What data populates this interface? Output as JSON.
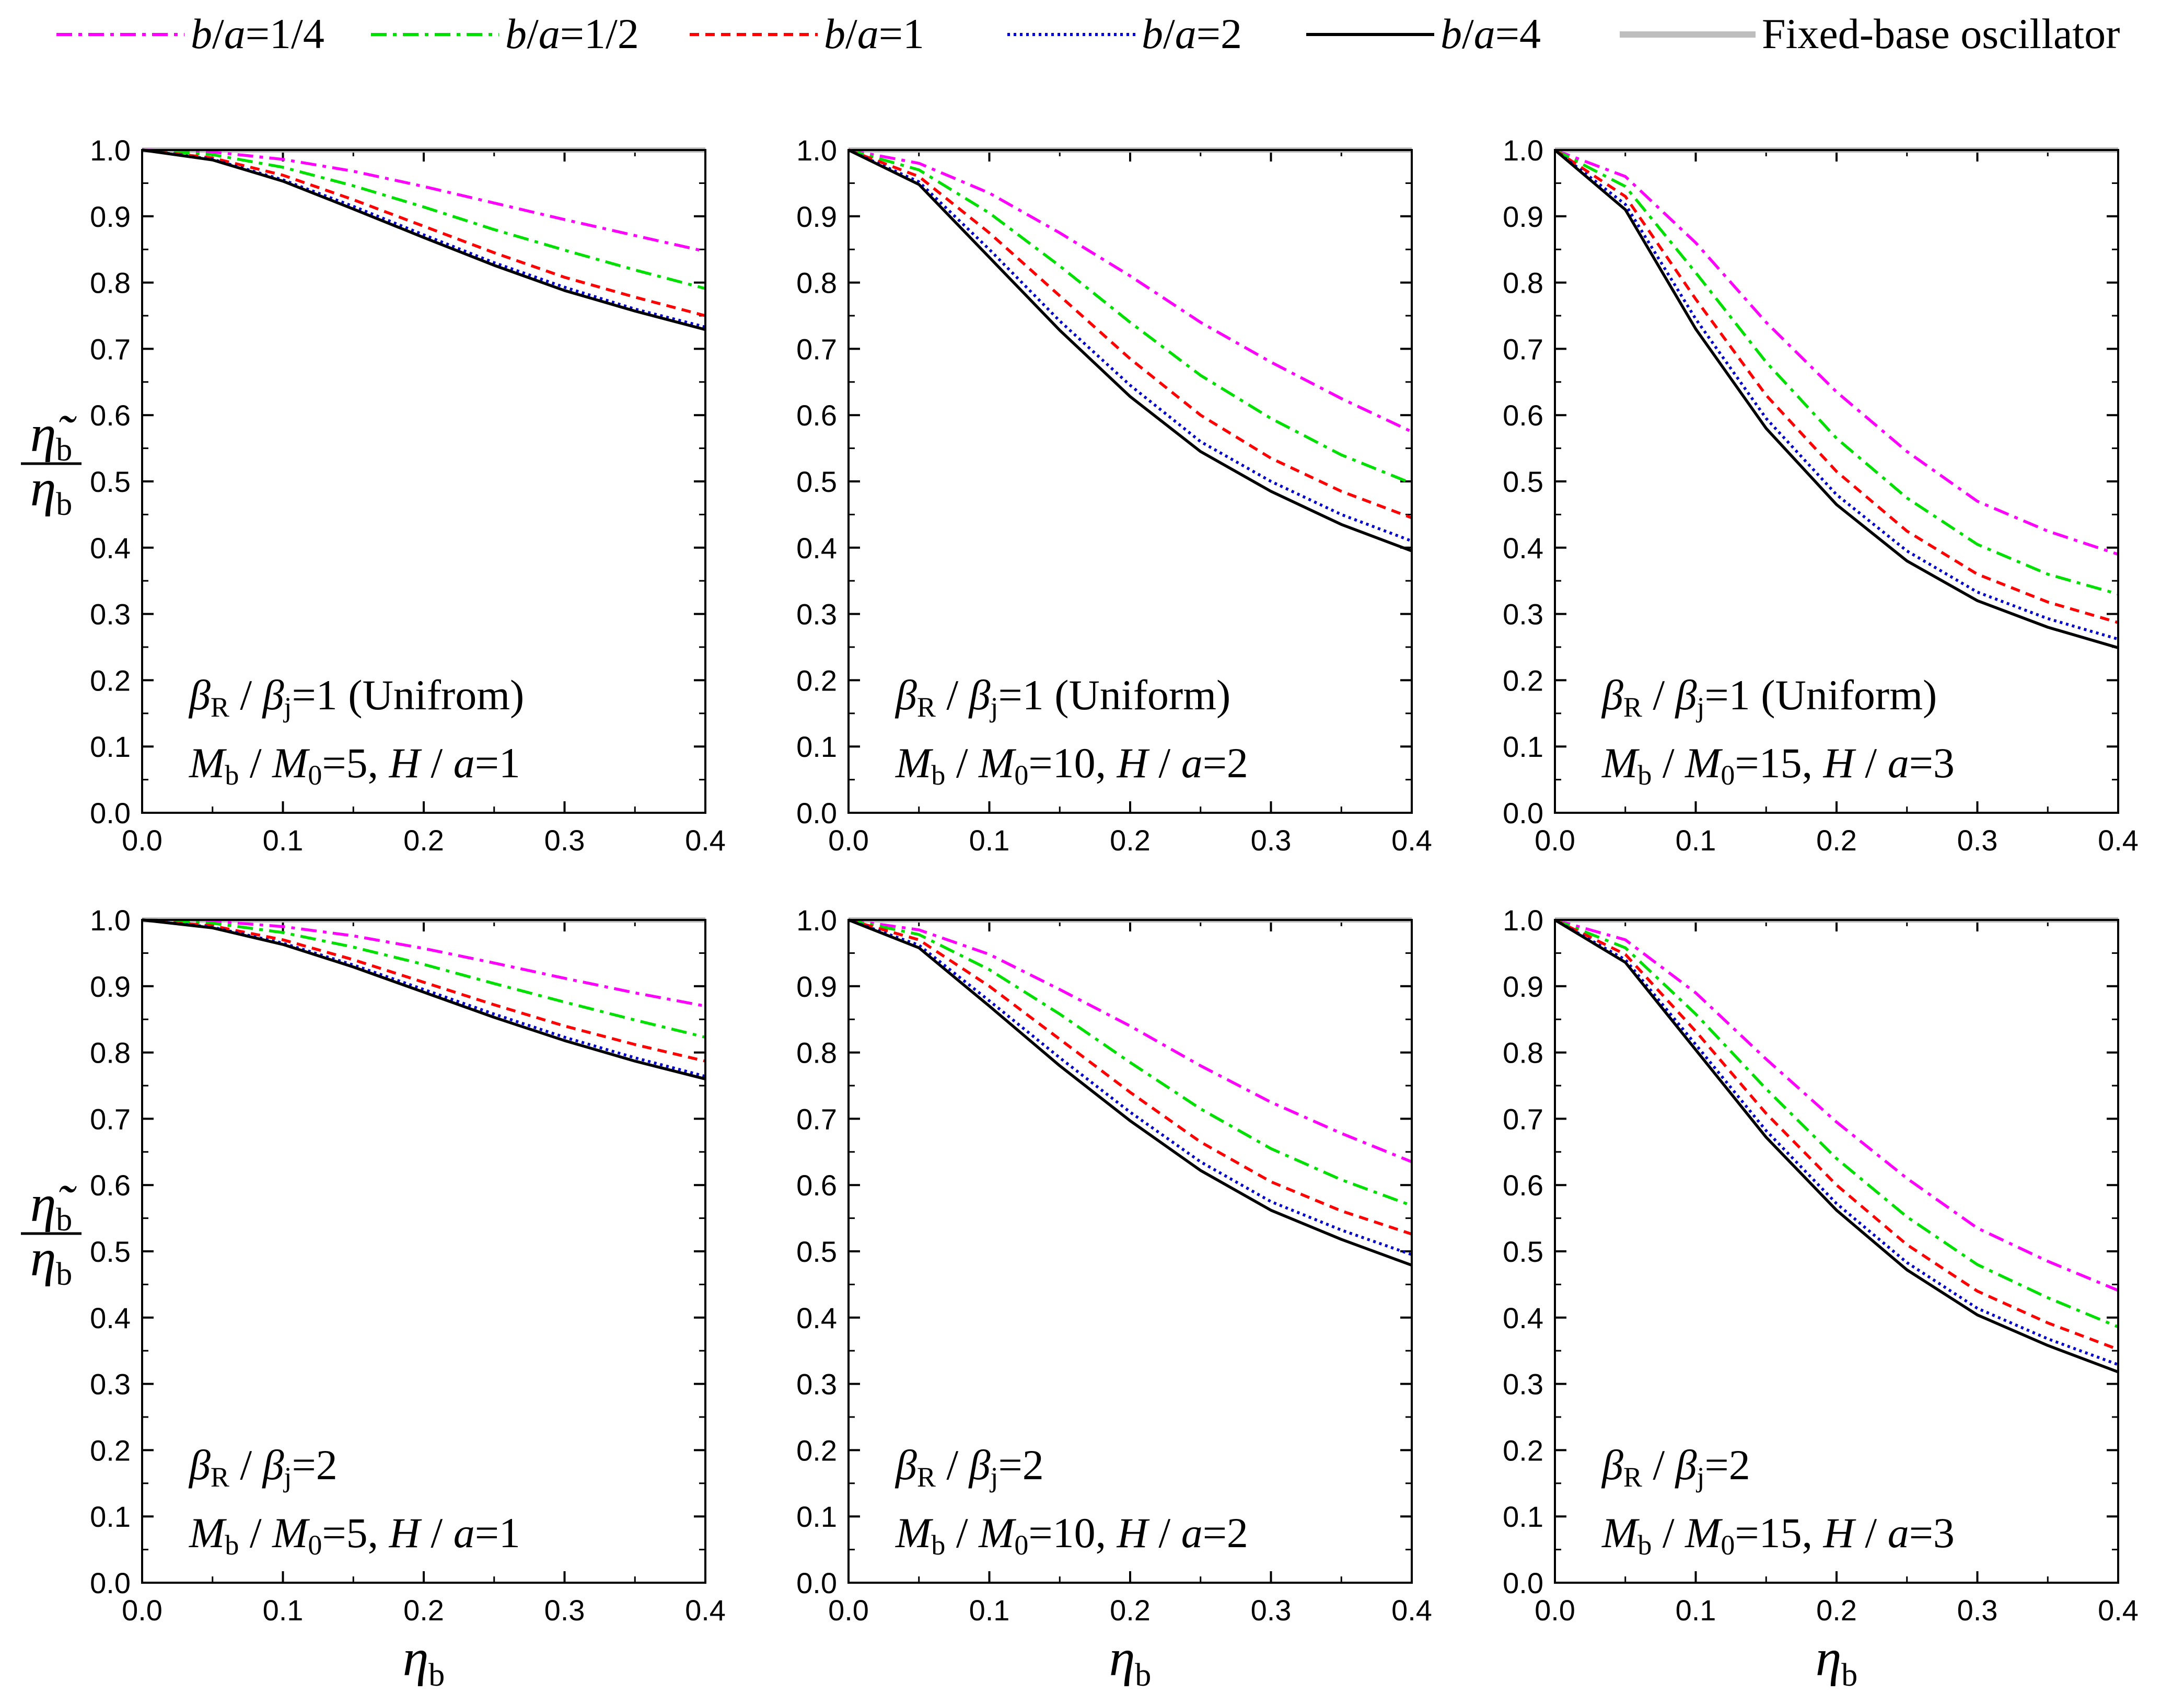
{
  "chart_data": {
    "type": "line",
    "x_axis": {
      "label_symbol": "η",
      "label_subscript": "b",
      "range": [
        0,
        0.4
      ],
      "ticks": [
        "0.0",
        "0.1",
        "0.2",
        "0.3",
        "0.4"
      ]
    },
    "y_axis": {
      "label_numerator_symbol": "η̃",
      "label_denominator_symbol": "η",
      "label_subscript": "b",
      "range": [
        0,
        1.0
      ],
      "ticks": [
        "0.0",
        "0.1",
        "0.2",
        "0.3",
        "0.4",
        "0.5",
        "0.6",
        "0.7",
        "0.8",
        "0.9",
        "1.0"
      ]
    },
    "legend": [
      {
        "key": "q025",
        "a": "b",
        "b": "a",
        "value": "1/4",
        "color": "#ff00ff",
        "dash": "dashdot"
      },
      {
        "key": "q05",
        "a": "b",
        "b": "a",
        "value": "1/2",
        "color": "#00e000",
        "dash": "dashdot"
      },
      {
        "key": "q1",
        "a": "b",
        "b": "a",
        "value": "1",
        "color": "#ff0000",
        "dash": "dash"
      },
      {
        "key": "q2",
        "a": "b",
        "b": "a",
        "value": "2",
        "color": "#0000cc",
        "dash": "dot"
      },
      {
        "key": "q4",
        "a": "b",
        "b": "a",
        "value": "4",
        "color": "#000000",
        "dash": "solid"
      },
      {
        "key": "fixed",
        "label": "Fixed-base oscillator",
        "color": "#bebebe",
        "dash": "solid"
      }
    ],
    "x": [
      0.0,
      0.05,
      0.1,
      0.15,
      0.2,
      0.25,
      0.3,
      0.35,
      0.4
    ],
    "panels": [
      {
        "ann1": {
          "beta_r": "β",
          "r_sub": "R",
          "beta_j": "β",
          "j_sub": "j",
          "value": "=1 (Unifrom)"
        },
        "ann2": {
          "m": "M",
          "m_sub": "b",
          "m0": "M",
          "m0_sub": "0",
          "m_value": "=5,",
          "h": "H",
          "a": "a",
          "h_value": "=1"
        },
        "series": {
          "q025": [
            1.0,
            0.997,
            0.986,
            0.968,
            0.945,
            0.92,
            0.895,
            0.871,
            0.847
          ],
          "q05": [
            1.0,
            0.993,
            0.974,
            0.946,
            0.914,
            0.88,
            0.849,
            0.819,
            0.791
          ],
          "q1": [
            1.0,
            0.988,
            0.962,
            0.925,
            0.885,
            0.845,
            0.808,
            0.778,
            0.75
          ],
          "q2": [
            1.0,
            0.986,
            0.955,
            0.915,
            0.872,
            0.83,
            0.793,
            0.76,
            0.733
          ],
          "q4": [
            1.0,
            0.985,
            0.953,
            0.911,
            0.868,
            0.826,
            0.788,
            0.757,
            0.729
          ],
          "fixed": [
            1.0,
            1.0,
            1.0,
            1.0,
            1.0,
            1.0,
            1.0,
            1.0,
            1.0
          ]
        }
      },
      {
        "ann1": {
          "beta_r": "β",
          "r_sub": "R",
          "beta_j": "β",
          "j_sub": "j",
          "value": "=1 (Uniform)"
        },
        "ann2": {
          "m": "M",
          "m_sub": "b",
          "m0": "M",
          "m0_sub": "0",
          "m_value": "=10,",
          "h": "H",
          "a": "a",
          "h_value": "=2"
        },
        "series": {
          "q025": [
            1.0,
            0.98,
            0.935,
            0.875,
            0.81,
            0.74,
            0.68,
            0.625,
            0.575
          ],
          "q05": [
            1.0,
            0.97,
            0.905,
            0.825,
            0.74,
            0.66,
            0.595,
            0.54,
            0.497
          ],
          "q1": [
            1.0,
            0.96,
            0.875,
            0.78,
            0.685,
            0.6,
            0.535,
            0.485,
            0.445
          ],
          "q2": [
            1.0,
            0.952,
            0.85,
            0.742,
            0.645,
            0.56,
            0.5,
            0.45,
            0.41
          ],
          "q4": [
            1.0,
            0.948,
            0.838,
            0.728,
            0.628,
            0.545,
            0.485,
            0.435,
            0.395
          ],
          "fixed": [
            1.0,
            1.0,
            1.0,
            1.0,
            1.0,
            1.0,
            1.0,
            1.0,
            1.0
          ]
        }
      },
      {
        "ann1": {
          "beta_r": "β",
          "r_sub": "R",
          "beta_j": "β",
          "j_sub": "j",
          "value": "=1 (Uniform)"
        },
        "ann2": {
          "m": "M",
          "m_sub": "b",
          "m0": "M",
          "m0_sub": "0",
          "m_value": "=15,",
          "h": "H",
          "a": "a",
          "h_value": "=3"
        },
        "series": {
          "q025": [
            1.0,
            0.96,
            0.86,
            0.74,
            0.635,
            0.545,
            0.47,
            0.425,
            0.39
          ],
          "q05": [
            1.0,
            0.945,
            0.815,
            0.68,
            0.565,
            0.475,
            0.405,
            0.36,
            0.33
          ],
          "q1": [
            1.0,
            0.93,
            0.775,
            0.63,
            0.515,
            0.425,
            0.36,
            0.318,
            0.287
          ],
          "q2": [
            1.0,
            0.918,
            0.745,
            0.595,
            0.48,
            0.395,
            0.333,
            0.293,
            0.262
          ],
          "q4": [
            1.0,
            0.91,
            0.73,
            0.58,
            0.465,
            0.38,
            0.32,
            0.28,
            0.249
          ],
          "fixed": [
            1.0,
            1.0,
            1.0,
            1.0,
            1.0,
            1.0,
            1.0,
            1.0,
            1.0
          ]
        }
      },
      {
        "ann1": {
          "beta_r": "β",
          "r_sub": "R",
          "beta_j": "β",
          "j_sub": "j",
          "value": "=2"
        },
        "ann2": {
          "m": "M",
          "m_sub": "b",
          "m0": "M",
          "m0_sub": "0",
          "m_value": "=5,",
          "h": "H",
          "a": "a",
          "h_value": "=1"
        },
        "series": {
          "q025": [
            1.0,
            0.998,
            0.99,
            0.976,
            0.957,
            0.935,
            0.912,
            0.89,
            0.87
          ],
          "q05": [
            1.0,
            0.995,
            0.981,
            0.959,
            0.933,
            0.904,
            0.876,
            0.849,
            0.823
          ],
          "q1": [
            1.0,
            0.991,
            0.97,
            0.94,
            0.906,
            0.872,
            0.84,
            0.812,
            0.787
          ],
          "q2": [
            1.0,
            0.989,
            0.965,
            0.932,
            0.895,
            0.858,
            0.823,
            0.792,
            0.764
          ],
          "q4": [
            1.0,
            0.988,
            0.963,
            0.929,
            0.891,
            0.853,
            0.818,
            0.787,
            0.76
          ],
          "fixed": [
            1.0,
            1.0,
            1.0,
            1.0,
            1.0,
            1.0,
            1.0,
            1.0,
            1.0
          ]
        }
      },
      {
        "ann1": {
          "beta_r": "β",
          "r_sub": "R",
          "beta_j": "β",
          "j_sub": "j",
          "value": "=2"
        },
        "ann2": {
          "m": "M",
          "m_sub": "b",
          "m0": "M",
          "m0_sub": "0",
          "m_value": "=10,",
          "h": "H",
          "a": "a",
          "h_value": "=2"
        },
        "series": {
          "q025": [
            1.0,
            0.985,
            0.948,
            0.895,
            0.84,
            0.78,
            0.725,
            0.678,
            0.635
          ],
          "q05": [
            1.0,
            0.978,
            0.925,
            0.858,
            0.785,
            0.715,
            0.655,
            0.608,
            0.569
          ],
          "q1": [
            1.0,
            0.97,
            0.9,
            0.82,
            0.74,
            0.665,
            0.605,
            0.561,
            0.526
          ],
          "q2": [
            1.0,
            0.962,
            0.878,
            0.792,
            0.71,
            0.635,
            0.575,
            0.532,
            0.495
          ],
          "q4": [
            1.0,
            0.958,
            0.87,
            0.78,
            0.697,
            0.622,
            0.562,
            0.518,
            0.479
          ],
          "fixed": [
            1.0,
            1.0,
            1.0,
            1.0,
            1.0,
            1.0,
            1.0,
            1.0,
            1.0
          ]
        }
      },
      {
        "ann1": {
          "beta_r": "β",
          "r_sub": "R",
          "beta_j": "β",
          "j_sub": "j",
          "value": "=2"
        },
        "ann2": {
          "m": "M",
          "m_sub": "b",
          "m0": "M",
          "m0_sub": "0",
          "m_value": "=15,",
          "h": "H",
          "a": "a",
          "h_value": "=3"
        },
        "series": {
          "q025": [
            1.0,
            0.97,
            0.89,
            0.79,
            0.695,
            0.61,
            0.535,
            0.485,
            0.441
          ],
          "q05": [
            1.0,
            0.958,
            0.858,
            0.745,
            0.64,
            0.552,
            0.48,
            0.43,
            0.386
          ],
          "q1": [
            1.0,
            0.948,
            0.832,
            0.708,
            0.6,
            0.51,
            0.44,
            0.392,
            0.352
          ],
          "q2": [
            1.0,
            0.94,
            0.812,
            0.682,
            0.572,
            0.483,
            0.414,
            0.368,
            0.329
          ],
          "q4": [
            1.0,
            0.936,
            0.804,
            0.672,
            0.562,
            0.472,
            0.404,
            0.358,
            0.318
          ],
          "fixed": [
            1.0,
            1.0,
            1.0,
            1.0,
            1.0,
            1.0,
            1.0,
            1.0,
            1.0
          ]
        }
      }
    ]
  }
}
